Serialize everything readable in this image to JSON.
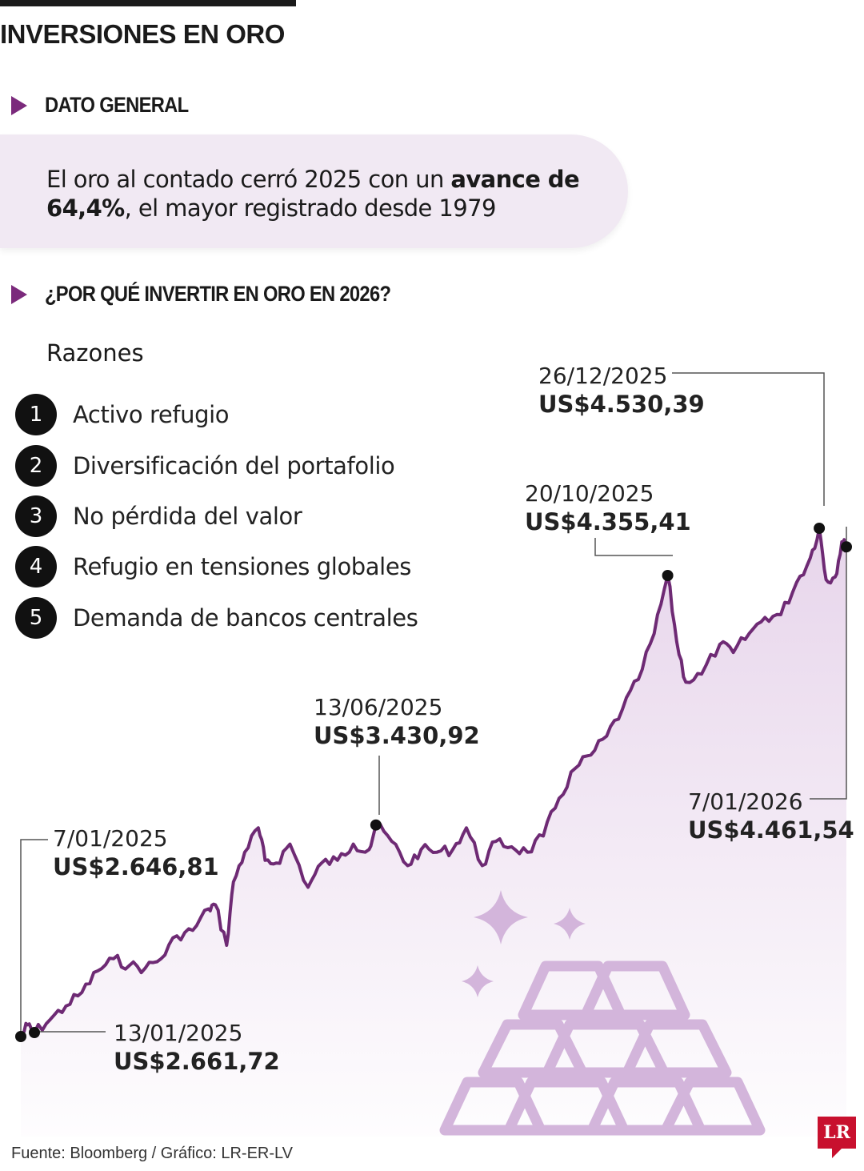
{
  "header": {
    "title": "INVERSIONES EN ORO"
  },
  "section1": {
    "title": "DATO GENERAL",
    "text_before": "El oro al contado cerró 2025 con un ",
    "text_bold": "avance de 64,4%",
    "text_after": ", el mayor registrado desde 1979"
  },
  "section2": {
    "title": "¿POR QUÉ INVERTIR EN ORO EN 2026?",
    "subtitle": "Razones",
    "reasons": [
      {
        "num": "1",
        "label": "Activo refugio"
      },
      {
        "num": "2",
        "label": "Diversificación del portafolio"
      },
      {
        "num": "3",
        "label": "No pérdida del valor"
      },
      {
        "num": "4",
        "label": "Refugio en tensiones globales"
      },
      {
        "num": "5",
        "label": "Demanda de bancos centrales"
      }
    ]
  },
  "chart_data": {
    "type": "area",
    "x": [
      "2025-01-07",
      "2025-01-10",
      "2025-01-13",
      "2025-01-20",
      "2025-01-27",
      "2025-02-03",
      "2025-02-10",
      "2025-02-17",
      "2025-02-24",
      "2025-03-03",
      "2025-03-10",
      "2025-03-17",
      "2025-03-24",
      "2025-03-31",
      "2025-04-03",
      "2025-04-08",
      "2025-04-11",
      "2025-04-16",
      "2025-04-22",
      "2025-04-25",
      "2025-04-30",
      "2025-05-06",
      "2025-05-14",
      "2025-05-20",
      "2025-05-27",
      "2025-06-03",
      "2025-06-10",
      "2025-06-13",
      "2025-06-20",
      "2025-06-27",
      "2025-07-03",
      "2025-07-10",
      "2025-07-17",
      "2025-07-23",
      "2025-07-30",
      "2025-08-05",
      "2025-08-12",
      "2025-08-19",
      "2025-08-26",
      "2025-09-02",
      "2025-09-09",
      "2025-09-16",
      "2025-09-23",
      "2025-09-30",
      "2025-10-07",
      "2025-10-14",
      "2025-10-20",
      "2025-10-24",
      "2025-10-28",
      "2025-11-04",
      "2025-11-12",
      "2025-11-18",
      "2025-11-25",
      "2025-12-02",
      "2025-12-09",
      "2025-12-16",
      "2025-12-22",
      "2025-12-26",
      "2025-12-29",
      "2026-01-02",
      "2026-01-05",
      "2026-01-07"
    ],
    "values": [
      2646.81,
      2690,
      2661.72,
      2710,
      2760,
      2810,
      2890,
      2935,
      2910,
      2900,
      2935,
      3020,
      3040,
      3120,
      3135,
      2985,
      3220,
      3330,
      3420,
      3300,
      3290,
      3360,
      3200,
      3290,
      3300,
      3360,
      3340,
      3430.92,
      3370,
      3280,
      3340,
      3330,
      3340,
      3420,
      3280,
      3370,
      3350,
      3330,
      3390,
      3530,
      3640,
      3690,
      3760,
      3860,
      3970,
      4140,
      4355.41,
      4110,
      3960,
      3990,
      4100,
      4070,
      4140,
      4200,
      4210,
      4330,
      4420,
      4530.39,
      4340,
      4350,
      4480,
      4461.54
    ],
    "ylim": [
      2600,
      4600
    ],
    "grid": false,
    "annotations": [
      {
        "date": "7/01/2025",
        "value": "US$2.646,81"
      },
      {
        "date": "13/01/2025",
        "value": "US$2.661,72"
      },
      {
        "date": "13/06/2025",
        "value": "US$3.430,92"
      },
      {
        "date": "20/10/2025",
        "value": "US$4.355,41"
      },
      {
        "date": "26/12/2025",
        "value": "US$4.530,39"
      },
      {
        "date": "7/01/2026",
        "value": "US$4.461,54"
      }
    ],
    "line_color": "#6e2a74",
    "fill_color": "#e9d8ec"
  },
  "footer": {
    "source": "Fuente: Bloomberg / Gráfico: LR-ER-LV",
    "logo": "LR"
  }
}
